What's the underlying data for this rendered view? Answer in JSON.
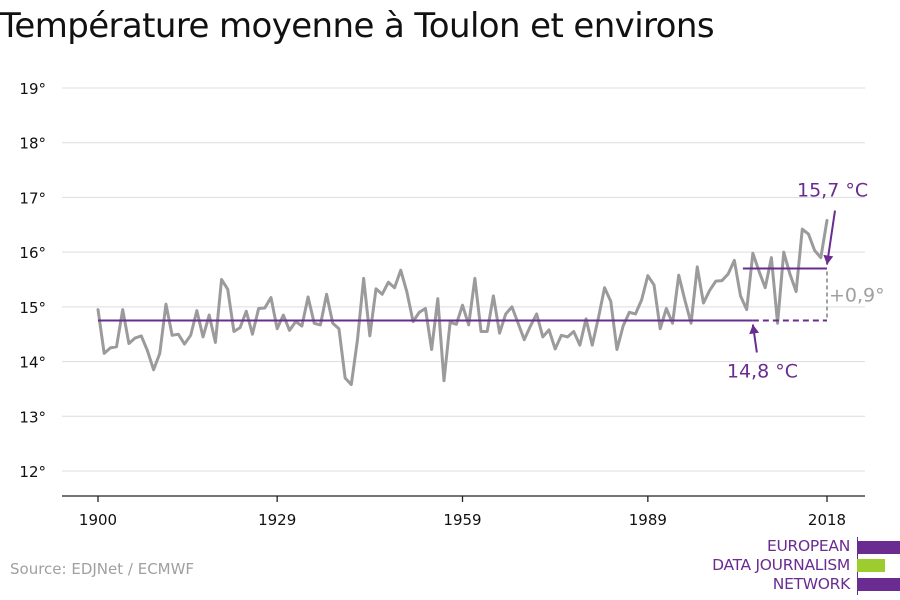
{
  "title": "Température moyenne à Toulon et environs",
  "source": "Source: EDJNet / ECMWF",
  "logo": {
    "lines": [
      "EUROPEAN",
      "DATA JOURNALISM",
      "NETWORK"
    ],
    "colors": [
      "#6a2c91",
      "#9ccc2d",
      "#6a2c91"
    ]
  },
  "chart_data": {
    "type": "line",
    "title": "Température moyenne à Toulon et environs",
    "xlabel": "",
    "ylabel": "",
    "xlim": [
      1900,
      2018
    ],
    "ylim": [
      12,
      19
    ],
    "xticks": [
      1900,
      1929,
      1959,
      1989,
      2018
    ],
    "xtick_labels": [
      "1900",
      "1929",
      "1959",
      "1989",
      "2018"
    ],
    "yticks": [
      12,
      13,
      14,
      15,
      16,
      17,
      18,
      19
    ],
    "ytick_labels": [
      "12°",
      "13°",
      "14°",
      "15°",
      "16°",
      "17°",
      "18°",
      "19°"
    ],
    "grid": "horizontal",
    "series": [
      {
        "color": "#9b9b9b",
        "x": [
          1900,
          1901,
          1902,
          1903,
          1904,
          1905,
          1906,
          1907,
          1908,
          1909,
          1910,
          1911,
          1912,
          1913,
          1914,
          1915,
          1916,
          1917,
          1918,
          1919,
          1920,
          1921,
          1922,
          1923,
          1924,
          1925,
          1926,
          1927,
          1928,
          1929,
          1930,
          1931,
          1932,
          1933,
          1934,
          1935,
          1936,
          1937,
          1938,
          1939,
          1940,
          1941,
          1942,
          1943,
          1944,
          1945,
          1946,
          1947,
          1948,
          1949,
          1950,
          1951,
          1952,
          1953,
          1954,
          1955,
          1956,
          1957,
          1958,
          1959,
          1960,
          1961,
          1962,
          1963,
          1964,
          1965,
          1966,
          1967,
          1968,
          1969,
          1970,
          1971,
          1972,
          1973,
          1974,
          1975,
          1976,
          1977,
          1978,
          1979,
          1980,
          1981,
          1982,
          1983,
          1984,
          1985,
          1986,
          1987,
          1988,
          1989,
          1990,
          1991,
          1992,
          1993,
          1994,
          1995,
          1996,
          1997,
          1998,
          1999,
          2000,
          2001,
          2002,
          2003,
          2004,
          2005,
          2006,
          2007,
          2008,
          2009,
          2010,
          2011,
          2012,
          2013,
          2014,
          2015,
          2016,
          2017,
          2018
        ],
        "values": [
          14.95,
          14.15,
          14.25,
          14.27,
          14.95,
          14.33,
          14.43,
          14.47,
          14.2,
          13.85,
          14.15,
          15.05,
          14.48,
          14.5,
          14.32,
          14.48,
          14.93,
          14.45,
          14.85,
          14.35,
          15.5,
          15.32,
          14.55,
          14.62,
          14.92,
          14.5,
          14.97,
          14.98,
          15.17,
          14.6,
          14.85,
          14.57,
          14.73,
          14.65,
          15.18,
          14.7,
          14.67,
          15.23,
          14.7,
          14.6,
          13.7,
          13.58,
          14.4,
          15.52,
          14.47,
          15.33,
          15.23,
          15.45,
          15.35,
          15.67,
          15.27,
          14.73,
          14.9,
          14.97,
          14.22,
          15.15,
          13.65,
          14.72,
          14.68,
          15.03,
          14.67,
          15.52,
          14.55,
          14.55,
          15.2,
          14.52,
          14.87,
          15.0,
          14.7,
          14.4,
          14.65,
          14.87,
          14.45,
          14.58,
          14.23,
          14.48,
          14.45,
          14.55,
          14.3,
          14.78,
          14.3,
          14.8,
          15.35,
          15.1,
          14.22,
          14.65,
          14.9,
          14.87,
          15.13,
          15.57,
          15.4,
          14.6,
          14.97,
          14.7,
          15.58,
          15.12,
          14.7,
          15.73,
          15.07,
          15.3,
          15.47,
          15.48,
          15.6,
          15.85,
          15.2,
          14.95,
          15.98,
          15.65,
          15.35,
          15.9,
          14.7,
          16.0,
          15.6,
          15.28,
          16.42,
          16.33,
          16.03,
          15.9,
          16.58
        ]
      }
    ],
    "reference_lines": [
      {
        "label": "14,8 °C",
        "value": 14.75,
        "x_from": 1900,
        "x_to": 2018,
        "solid_to": 2006,
        "color": "#6a2c91"
      },
      {
        "label": "15,7 °C",
        "value": 15.7,
        "x_from": 2006,
        "x_to": 2018,
        "color": "#6a2c91"
      }
    ],
    "difference_label": "+0,9°",
    "difference_color": "#a0a0a0"
  }
}
